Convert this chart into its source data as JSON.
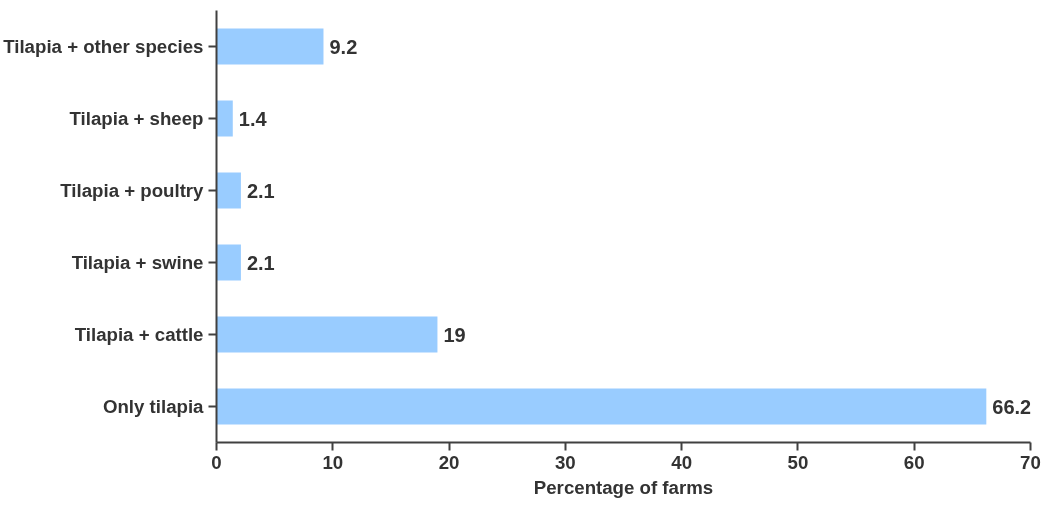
{
  "chart_data": {
    "type": "bar",
    "orientation": "horizontal",
    "xlabel": "Percentage of farms",
    "categories": [
      "Tilapia + other species",
      "Tilapia + sheep",
      "Tilapia + poultry",
      "Tilapia + swine",
      "Tilapia + cattle",
      "Only tilapia"
    ],
    "values": [
      9.2,
      1.4,
      2.1,
      2.1,
      19,
      66.2
    ],
    "color": "#99ccff",
    "xlim": [
      0,
      70
    ],
    "xticks": [
      0,
      10,
      20,
      30,
      40,
      50,
      60,
      70
    ],
    "grid": false,
    "data_labels": true
  }
}
